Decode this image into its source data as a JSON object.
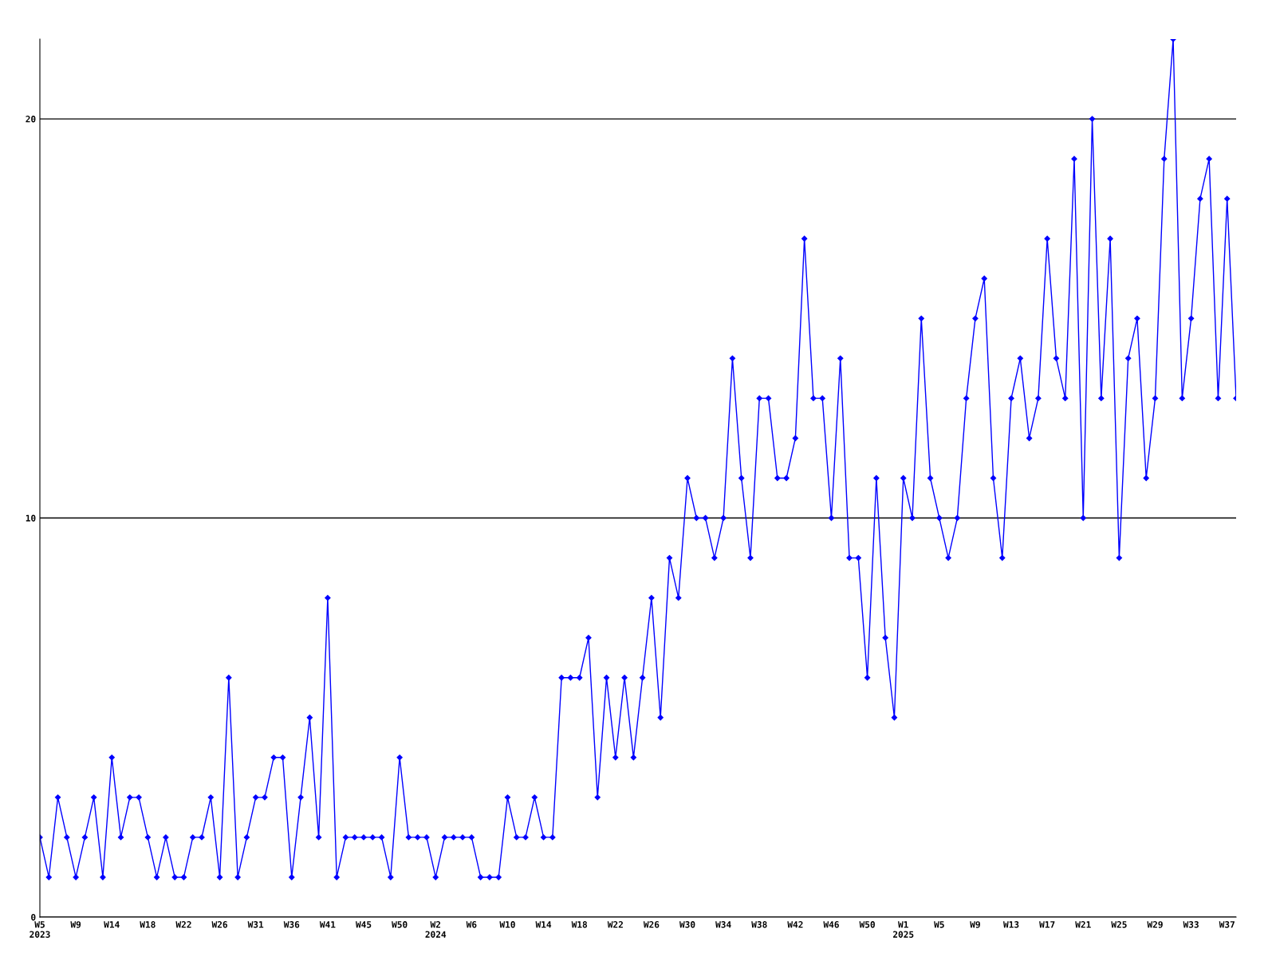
{
  "chart_data": {
    "type": "line",
    "categories": [
      "W5\n2023",
      null,
      null,
      null,
      "W9",
      null,
      null,
      null,
      "W14",
      null,
      null,
      null,
      "W18",
      null,
      null,
      null,
      "W22",
      null,
      null,
      null,
      "W26",
      null,
      null,
      null,
      "W31",
      null,
      null,
      null,
      "W36",
      null,
      null,
      null,
      "W41",
      null,
      null,
      null,
      "W45",
      null,
      null,
      null,
      "W50",
      null,
      null,
      null,
      "W2\n2024",
      null,
      null,
      null,
      "W6",
      null,
      null,
      null,
      "W10",
      null,
      null,
      null,
      "W14",
      null,
      null,
      null,
      "W18",
      null,
      null,
      null,
      "W22",
      null,
      null,
      null,
      "W26",
      null,
      null,
      null,
      "W30",
      null,
      null,
      null,
      "W34",
      null,
      null,
      null,
      "W38",
      null,
      null,
      null,
      "W42",
      null,
      null,
      null,
      "W46",
      null,
      null,
      null,
      "W50",
      null,
      null,
      null,
      "W1\n2025",
      null,
      null,
      null,
      "W5",
      null,
      null,
      null,
      "W9",
      null,
      null,
      null,
      "W13",
      null,
      null,
      null,
      "W17",
      null,
      null,
      null,
      "W21",
      null,
      null,
      null,
      "W25",
      null,
      null,
      null,
      "W29",
      null,
      null,
      null,
      "W33",
      null,
      null,
      null,
      "W37",
      null
    ],
    "series": [
      {
        "color": "#0000ff",
        "values": [
          2,
          1,
          3,
          2,
          1,
          2,
          3,
          1,
          4,
          2,
          3,
          3,
          2,
          1,
          2,
          1,
          1,
          2,
          2,
          3,
          1,
          6,
          1,
          2,
          3,
          3,
          4,
          4,
          1,
          3,
          5,
          2,
          8,
          1,
          2,
          2,
          2,
          2,
          2,
          1,
          4,
          2,
          2,
          2,
          1,
          2,
          2,
          2,
          2,
          1,
          1,
          1,
          3,
          2,
          2,
          3,
          2,
          2,
          6,
          6,
          6,
          7,
          3,
          6,
          4,
          6,
          4,
          6,
          8,
          5,
          9,
          8,
          11,
          10,
          10,
          9,
          10,
          14,
          11,
          9,
          13,
          13,
          11,
          11,
          12,
          17,
          13,
          13,
          10,
          14,
          9,
          9,
          6,
          11,
          7,
          5,
          11,
          10,
          15,
          11,
          10,
          9,
          10,
          13,
          15,
          16,
          11,
          9,
          13,
          14,
          12,
          13,
          17,
          14,
          13,
          19,
          10,
          20,
          13,
          17,
          9,
          14,
          15,
          11,
          13,
          19,
          22,
          13,
          15,
          18,
          19,
          13,
          18,
          13
        ]
      }
    ],
    "ylim": [
      0,
      22
    ],
    "yticks": [
      0,
      10,
      20
    ],
    "grid": "y",
    "marker": "diamond",
    "line_style": "solid"
  }
}
